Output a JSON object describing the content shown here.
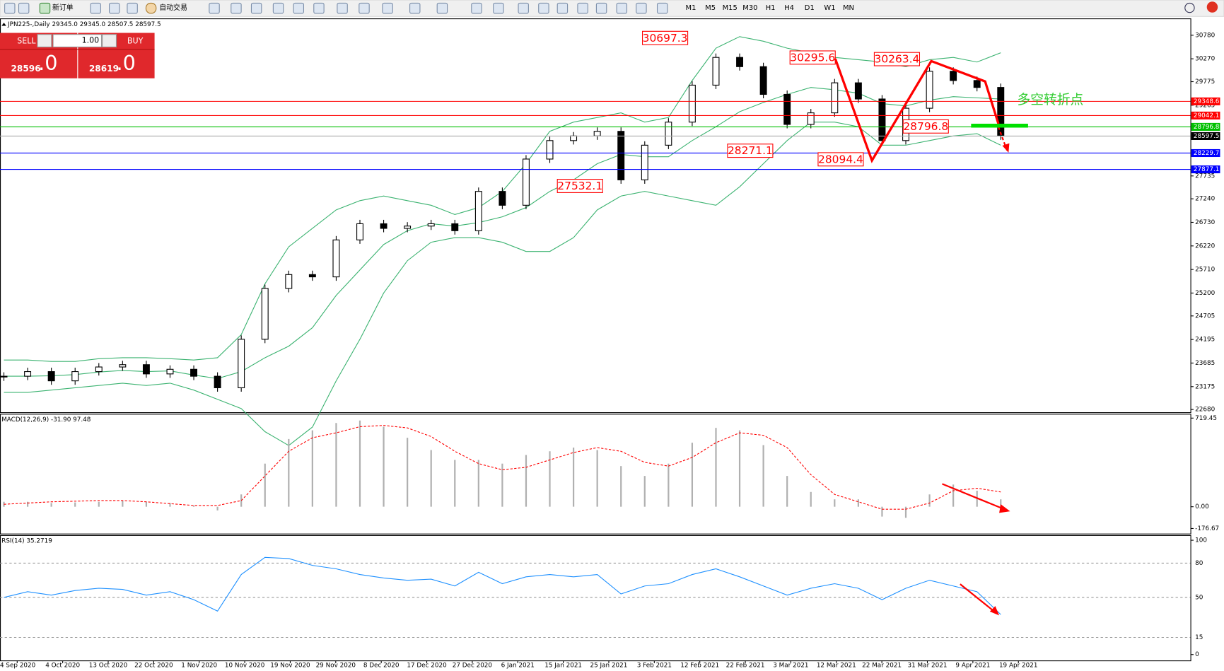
{
  "toolbar": {
    "new_order": "新订单",
    "auto_trading": "自动交易",
    "timeframes": [
      "M1",
      "M5",
      "M15",
      "M30",
      "H1",
      "H4",
      "D1",
      "W1",
      "MN"
    ]
  },
  "header": "JPN225-,Daily  29345.0 29345.0 28507.5 28597.5",
  "trade_panel": {
    "sell": "SELL",
    "buy": "BUY",
    "lots": "1.00",
    "sell_price": "28596",
    "sell_frac": ".0",
    "buy_price": "28619",
    "buy_frac": ".0"
  },
  "price_chart": {
    "ylim": [
      22680,
      30780
    ],
    "yticks": [
      30780,
      30270,
      29775,
      29265,
      27735,
      27240,
      26730,
      26220,
      25710,
      25200,
      24705,
      24195,
      23685,
      23175,
      22680
    ],
    "band_color": "#3cb371",
    "close": [
      23400,
      23500,
      23300,
      23500,
      23600,
      23650,
      23450,
      23550,
      23400,
      23150,
      24200,
      25300,
      25600,
      25550,
      26350,
      26700,
      26600,
      26650,
      26700,
      26550,
      27400,
      27100,
      28100,
      28500,
      28600,
      28700,
      27650,
      28400,
      28900,
      29700,
      30300,
      30100,
      29500,
      28850,
      29100,
      29750,
      29400,
      28500,
      29200,
      30000,
      29800,
      29650,
      28600
    ],
    "bb_upper": [
      23750,
      23750,
      23720,
      23720,
      23780,
      23800,
      23800,
      23780,
      23750,
      23800,
      24300,
      25400,
      26200,
      26600,
      27000,
      27200,
      27300,
      27200,
      27100,
      26900,
      27050,
      27400,
      28000,
      28700,
      28900,
      29000,
      29100,
      28900,
      29000,
      29800,
      30500,
      30750,
      30650,
      30500,
      30400,
      30300,
      30250,
      30200,
      30100,
      30250,
      30300,
      30200,
      30400
    ],
    "bb_middle": [
      23400,
      23400,
      23410,
      23435,
      23490,
      23525,
      23500,
      23515,
      23425,
      23350,
      23500,
      23800,
      24050,
      24450,
      25150,
      25700,
      26250,
      26550,
      26700,
      26650,
      26725,
      26850,
      27050,
      27400,
      27650,
      28000,
      28200,
      28150,
      28150,
      28500,
      28800,
      29125,
      29325,
      29500,
      29650,
      29600,
      29525,
      29300,
      29250,
      29375,
      29450,
      29425,
      29400
    ],
    "bb_lower": [
      23050,
      23050,
      23100,
      23150,
      23200,
      23250,
      23200,
      23250,
      23100,
      22900,
      22700,
      22200,
      21900,
      22300,
      23300,
      24200,
      25200,
      25900,
      26300,
      26400,
      26400,
      26300,
      26100,
      26100,
      26400,
      27000,
      27300,
      27400,
      27300,
      27200,
      27100,
      27500,
      28000,
      28500,
      28900,
      28900,
      28800,
      28400,
      28400,
      28500,
      28600,
      28650,
      28400
    ],
    "levels": [
      {
        "value": 29348.6,
        "color": "#ff0000"
      },
      {
        "value": 29042.1,
        "color": "#ff0000"
      },
      {
        "value": 28796.8,
        "color": "#00c000"
      },
      {
        "value": 28597.5,
        "color": "#000000"
      },
      {
        "value": 28229.7,
        "color": "#0000ff"
      },
      {
        "value": 27877.1,
        "color": "#0000ff"
      }
    ],
    "annotations": [
      30697.3,
      30295.6,
      30263.4,
      28796.8,
      28271.1,
      28094.4,
      27532.1
    ],
    "note": "多空转折点"
  },
  "macd": {
    "label": "MACD(12,26,9) -31.90 97.48",
    "ylim": [
      -176.67,
      719.45
    ],
    "yticks": [
      719.45,
      {
        "value": 0,
        "label": "0.00"
      },
      -176.67
    ],
    "histogram": [
      40,
      40,
      30,
      35,
      40,
      50,
      40,
      30,
      10,
      -30,
      100,
      350,
      550,
      620,
      680,
      700,
      650,
      560,
      460,
      380,
      380,
      350,
      420,
      450,
      480,
      460,
      330,
      250,
      350,
      520,
      640,
      620,
      500,
      250,
      120,
      60,
      60,
      -80,
      -90,
      100,
      180,
      130,
      60
    ],
    "signal": [
      20,
      30,
      40,
      45,
      50,
      50,
      40,
      25,
      10,
      10,
      50,
      250,
      450,
      560,
      600,
      650,
      660,
      640,
      570,
      450,
      350,
      300,
      320,
      380,
      440,
      480,
      450,
      360,
      330,
      400,
      520,
      600,
      580,
      480,
      260,
      100,
      40,
      -20,
      -20,
      30,
      130,
      150,
      120
    ]
  },
  "rsi": {
    "label": "RSI(14) 35.2719",
    "ylim": [
      0,
      100
    ],
    "yticks": [
      100,
      80,
      50,
      15,
      0
    ],
    "values": [
      50,
      55,
      52,
      56,
      58,
      57,
      52,
      55,
      48,
      38,
      70,
      85,
      84,
      78,
      75,
      70,
      67,
      65,
      66,
      60,
      72,
      62,
      68,
      70,
      68,
      70,
      53,
      60,
      62,
      70,
      75,
      68,
      60,
      52,
      58,
      62,
      58,
      48,
      58,
      65,
      60,
      55,
      35
    ]
  },
  "time_axis": [
    "4 Sep 2020",
    "4 Oct 2020",
    "13 Oct 2020",
    "22 Oct 2020",
    "1 Nov 2020",
    "10 Nov 2020",
    "19 Nov 2020",
    "29 Nov 2020",
    "8 Dec 2020",
    "17 Dec 2020",
    "27 Dec 2020",
    "6 Jan 2021",
    "15 Jan 2021",
    "25 Jan 2021",
    "3 Feb 2021",
    "12 Feb 2021",
    "22 Feb 2021",
    "3 Mar 2021",
    "12 Mar 2021",
    "22 Mar 2021",
    "31 Mar 2021",
    "9 Apr 2021",
    "19 Apr 2021"
  ]
}
